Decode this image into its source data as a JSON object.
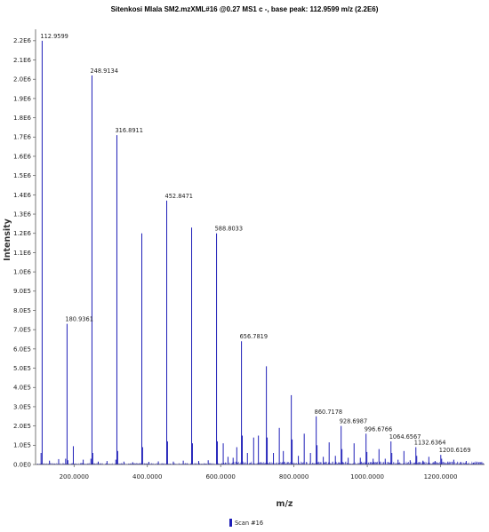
{
  "chart_data": {
    "type": "bar",
    "title": "Sitenkosi Mlala SM2.mzXML#16 @0.27 MS1 c -, base peak: 112.9599 m/z (2.2E6)",
    "xlabel": "m/z",
    "ylabel": "Intensity",
    "xlim": [
      95,
      1320
    ],
    "ylim": [
      0,
      2250000
    ],
    "x_ticks": [
      200,
      400,
      600,
      800,
      1000,
      1200
    ],
    "x_tick_labels": [
      "200.0000",
      "400.0000",
      "600.0000",
      "800.0000",
      "1000.0000",
      "1200.0000"
    ],
    "y_ticks": [
      0,
      100000,
      200000,
      300000,
      400000,
      500000,
      600000,
      700000,
      800000,
      900000,
      1000000,
      1100000,
      1200000,
      1300000,
      1400000,
      1500000,
      1600000,
      1700000,
      1800000,
      1900000,
      2000000,
      2100000,
      2200000
    ],
    "y_tick_labels": [
      "0.0E0",
      "1.0E5",
      "2.0E5",
      "3.0E5",
      "4.0E5",
      "5.0E5",
      "6.0E5",
      "7.0E5",
      "8.0E5",
      "9.0E5",
      "1.0E6",
      "1.1E6",
      "1.2E6",
      "1.3E6",
      "1.4E6",
      "1.5E6",
      "1.6E6",
      "1.7E6",
      "1.8E6",
      "1.9E6",
      "2.0E6",
      "2.1E6",
      "2.2E6"
    ],
    "grid": false,
    "legend_position": "bottom-left",
    "series": [
      {
        "name": "Scan #16",
        "color": "#1f1fb8",
        "peaks": [
          {
            "mz": 112.9599,
            "intensity": 2200000,
            "label": "112.9599"
          },
          {
            "mz": 180.9361,
            "intensity": 730000,
            "label": "180.9361"
          },
          {
            "mz": 248.9134,
            "intensity": 2020000,
            "label": "248.9134"
          },
          {
            "mz": 316.8911,
            "intensity": 1710000,
            "label": "316.8911"
          },
          {
            "mz": 384.87,
            "intensity": 1200000
          },
          {
            "mz": 452.8471,
            "intensity": 1370000,
            "label": "452.8471"
          },
          {
            "mz": 520.82,
            "intensity": 1230000
          },
          {
            "mz": 588.8033,
            "intensity": 1200000,
            "label": "588.8033"
          },
          {
            "mz": 656.7819,
            "intensity": 640000,
            "label": "656.7819"
          },
          {
            "mz": 724.76,
            "intensity": 510000
          },
          {
            "mz": 792.74,
            "intensity": 360000
          },
          {
            "mz": 860.7178,
            "intensity": 250000,
            "label": "860.7178"
          },
          {
            "mz": 928.6987,
            "intensity": 200000,
            "label": "928.6987"
          },
          {
            "mz": 996.6766,
            "intensity": 160000,
            "label": "996.6766"
          },
          {
            "mz": 1064.6567,
            "intensity": 120000,
            "label": "1064.6567"
          },
          {
            "mz": 1132.6364,
            "intensity": 90000,
            "label": "1132.6364"
          },
          {
            "mz": 1200.6169,
            "intensity": 50000,
            "label": "1200.6169"
          },
          {
            "mz": 110,
            "intensity": 60000
          },
          {
            "mz": 133,
            "intensity": 20000
          },
          {
            "mz": 158,
            "intensity": 28000
          },
          {
            "mz": 177,
            "intensity": 30000
          },
          {
            "mz": 183,
            "intensity": 22000
          },
          {
            "mz": 198,
            "intensity": 95000
          },
          {
            "mz": 225,
            "intensity": 25000
          },
          {
            "mz": 246,
            "intensity": 30000
          },
          {
            "mz": 251,
            "intensity": 60000
          },
          {
            "mz": 266,
            "intensity": 15000
          },
          {
            "mz": 290,
            "intensity": 18000
          },
          {
            "mz": 314,
            "intensity": 25000
          },
          {
            "mz": 319,
            "intensity": 70000
          },
          {
            "mz": 336,
            "intensity": 15000
          },
          {
            "mz": 360,
            "intensity": 12000
          },
          {
            "mz": 387,
            "intensity": 90000
          },
          {
            "mz": 404,
            "intensity": 14000
          },
          {
            "mz": 430,
            "intensity": 16000
          },
          {
            "mz": 455,
            "intensity": 120000
          },
          {
            "mz": 471,
            "intensity": 15000
          },
          {
            "mz": 498,
            "intensity": 20000
          },
          {
            "mz": 523,
            "intensity": 110000
          },
          {
            "mz": 540,
            "intensity": 18000
          },
          {
            "mz": 566,
            "intensity": 22000
          },
          {
            "mz": 591,
            "intensity": 120000
          },
          {
            "mz": 607,
            "intensity": 110000
          },
          {
            "mz": 620,
            "intensity": 40000
          },
          {
            "mz": 634,
            "intensity": 35000
          },
          {
            "mz": 644,
            "intensity": 90000
          },
          {
            "mz": 659,
            "intensity": 150000
          },
          {
            "mz": 673,
            "intensity": 60000
          },
          {
            "mz": 690,
            "intensity": 140000
          },
          {
            "mz": 703,
            "intensity": 150000
          },
          {
            "mz": 727,
            "intensity": 140000
          },
          {
            "mz": 744,
            "intensity": 60000
          },
          {
            "mz": 760,
            "intensity": 190000
          },
          {
            "mz": 771,
            "intensity": 70000
          },
          {
            "mz": 795,
            "intensity": 130000
          },
          {
            "mz": 812,
            "intensity": 45000
          },
          {
            "mz": 828,
            "intensity": 160000
          },
          {
            "mz": 845,
            "intensity": 60000
          },
          {
            "mz": 863,
            "intensity": 100000
          },
          {
            "mz": 880,
            "intensity": 40000
          },
          {
            "mz": 896,
            "intensity": 115000
          },
          {
            "mz": 913,
            "intensity": 45000
          },
          {
            "mz": 931,
            "intensity": 80000
          },
          {
            "mz": 948,
            "intensity": 35000
          },
          {
            "mz": 964,
            "intensity": 110000
          },
          {
            "mz": 981,
            "intensity": 35000
          },
          {
            "mz": 999,
            "intensity": 65000
          },
          {
            "mz": 1016,
            "intensity": 30000
          },
          {
            "mz": 1032,
            "intensity": 80000
          },
          {
            "mz": 1049,
            "intensity": 30000
          },
          {
            "mz": 1067,
            "intensity": 60000
          },
          {
            "mz": 1084,
            "intensity": 25000
          },
          {
            "mz": 1100,
            "intensity": 70000
          },
          {
            "mz": 1117,
            "intensity": 22000
          },
          {
            "mz": 1135,
            "intensity": 45000
          },
          {
            "mz": 1152,
            "intensity": 20000
          },
          {
            "mz": 1168,
            "intensity": 40000
          },
          {
            "mz": 1185,
            "intensity": 18000
          },
          {
            "mz": 1203,
            "intensity": 30000
          },
          {
            "mz": 1220,
            "intensity": 15000
          },
          {
            "mz": 1236,
            "intensity": 25000
          },
          {
            "mz": 1255,
            "intensity": 14000
          },
          {
            "mz": 1270,
            "intensity": 18000
          },
          {
            "mz": 1290,
            "intensity": 10000
          },
          {
            "mz": 1305,
            "intensity": 12000
          }
        ]
      }
    ]
  }
}
